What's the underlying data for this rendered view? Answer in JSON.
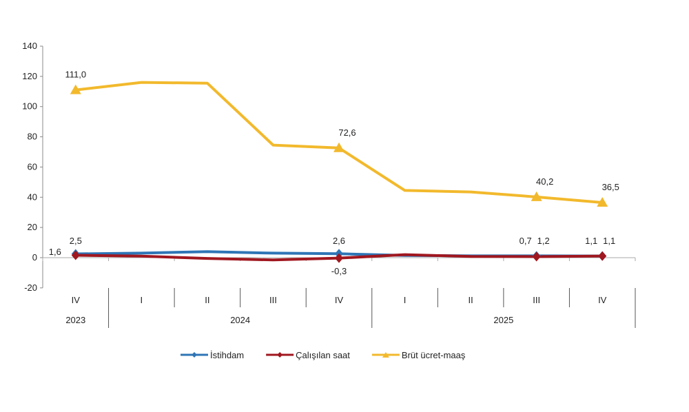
{
  "chart_data": {
    "type": "line",
    "categories": [
      "IV",
      "I",
      "II",
      "III",
      "IV",
      "I",
      "II",
      "III",
      "IV"
    ],
    "years": [
      {
        "label": "2023",
        "from": 0,
        "to": 0
      },
      {
        "label": "2024",
        "from": 1,
        "to": 4
      },
      {
        "label": "2025",
        "from": 5,
        "to": 8
      }
    ],
    "ylim": [
      -20,
      140
    ],
    "yticks": [
      "-20",
      "0",
      "20",
      "40",
      "60",
      "80",
      "100",
      "120",
      "140"
    ],
    "grid": false,
    "legend_position": "bottom",
    "series": [
      {
        "name": "İstihdam",
        "color": "#2e75b6",
        "marker": "diamond",
        "values": [
          2.5,
          3.0,
          4.0,
          3.0,
          2.6,
          1.5,
          1.2,
          1.2,
          1.1
        ],
        "labels": {
          "0": "2,5",
          "4": "2,6",
          "7": "1,2",
          "8": "1,1"
        }
      },
      {
        "name": "Çalışılan saat",
        "color": "#a0171f",
        "marker": "diamond",
        "values": [
          1.6,
          1.0,
          -0.5,
          -1.5,
          -0.3,
          2.0,
          0.8,
          0.7,
          1.1
        ],
        "labels": {
          "0": "1,6",
          "4": "-0,3",
          "7": "0,7",
          "8": "1,1"
        }
      },
      {
        "name": "Brüt ücret-maaş",
        "color": "#f2b92c",
        "marker": "triangle",
        "values": [
          111.0,
          116.0,
          115.5,
          74.5,
          72.6,
          44.5,
          43.5,
          40.2,
          36.5
        ],
        "labels": {
          "0": "111,0",
          "4": "72,6",
          "7": "40,2",
          "8": "36,5"
        }
      }
    ]
  }
}
